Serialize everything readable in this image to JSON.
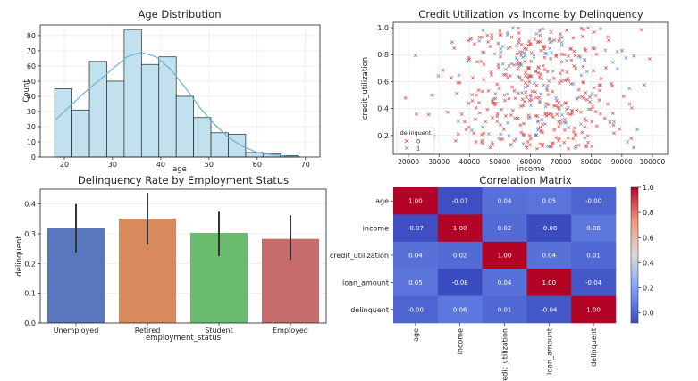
{
  "chart_data": [
    {
      "type": "bar",
      "subtype": "histogram",
      "title": "Age Distribution",
      "xlabel": "age",
      "ylabel": "Count",
      "xlim": [
        15,
        73
      ],
      "ylim": [
        0,
        87
      ],
      "xticks": [
        20,
        30,
        40,
        50,
        60,
        70
      ],
      "yticks": [
        0,
        10,
        20,
        30,
        40,
        50,
        60,
        70,
        80
      ],
      "bin_edges": [
        18,
        21.6,
        25.2,
        28.8,
        32.4,
        36,
        39.6,
        43.2,
        46.8,
        50.4,
        54,
        57.6,
        61.2,
        64.8,
        68.4
      ],
      "values": [
        45,
        31,
        63,
        50,
        84,
        61,
        66,
        40,
        26,
        16,
        15,
        3,
        2,
        1
      ],
      "kde": {
        "x": [
          18,
          21,
          24,
          27,
          30,
          33,
          36,
          39,
          42,
          45,
          48,
          51,
          54,
          57,
          60,
          63,
          66,
          69
        ],
        "y": [
          24,
          33,
          42,
          50,
          58,
          66,
          69,
          66,
          58,
          46,
          33,
          22,
          13,
          7,
          3,
          1.5,
          0.6,
          0.2
        ]
      },
      "colors": {
        "bar": "#c2e1ee",
        "edge": "#222222",
        "kde": "#6cb3d6"
      },
      "grid": true
    },
    {
      "type": "scatter",
      "title": "Credit Utilization vs Income by Delinquency",
      "xlabel": "income",
      "ylabel": "credit_utilization",
      "xlim": [
        15000,
        105000
      ],
      "ylim": [
        0.06,
        1.04
      ],
      "xticks": [
        20000,
        30000,
        40000,
        50000,
        60000,
        70000,
        80000,
        90000,
        100000
      ],
      "yticks": [
        0.2,
        0.4,
        0.6,
        0.8,
        1.0
      ],
      "ytick_labels": [
        "0.2",
        "0.4",
        "0.6",
        "0.8",
        "1.0"
      ],
      "legend": {
        "title": "delinquent",
        "placement": "lower-left",
        "entries": [
          "0",
          "1"
        ]
      },
      "series": [
        {
          "name": "0",
          "color": "#e04646",
          "marker": "x",
          "n_points": 360,
          "x_mean": 62000,
          "x_sd": 15000,
          "y_min": 0.1,
          "y_max": 1.0
        },
        {
          "name": "1",
          "color": "#5a8fd6",
          "marker": "x",
          "n_points": 110,
          "x_mean": 62000,
          "x_sd": 14000,
          "y_min": 0.1,
          "y_max": 1.0
        }
      ],
      "grid": true
    },
    {
      "type": "bar",
      "title": "Delinquency Rate by Employment Status",
      "xlabel": "employment_status",
      "ylabel": "delinquent",
      "categories": [
        "Unemployed",
        "Retired",
        "Student",
        "Employed"
      ],
      "values": [
        0.318,
        0.351,
        0.303,
        0.283
      ],
      "ci_low": [
        0.237,
        0.263,
        0.225,
        0.212
      ],
      "ci_high": [
        0.4,
        0.438,
        0.374,
        0.362
      ],
      "ylim": [
        0,
        0.45
      ],
      "yticks": [
        0.0,
        0.1,
        0.2,
        0.3,
        0.4
      ],
      "ytick_labels": [
        "0.0",
        "0.1",
        "0.2",
        "0.3",
        "0.4"
      ],
      "colors": [
        "#5877be",
        "#d98a5c",
        "#6abb6d",
        "#c76c6c"
      ],
      "grid": true
    },
    {
      "type": "heatmap",
      "title": "Correlation Matrix",
      "labels": [
        "age",
        "income",
        "credit_utilization",
        "loan_amount",
        "delinquent"
      ],
      "matrix": [
        [
          1.0,
          -0.07,
          0.04,
          0.05,
          -0.0
        ],
        [
          -0.07,
          1.0,
          0.02,
          -0.08,
          0.06
        ],
        [
          0.04,
          0.02,
          1.0,
          0.04,
          0.01
        ],
        [
          0.05,
          -0.08,
          0.04,
          1.0,
          -0.04
        ],
        [
          -0.0,
          0.06,
          0.01,
          -0.04,
          1.0
        ]
      ],
      "cell_labels": [
        [
          "1.00",
          "-0.07",
          "0.04",
          "0.05",
          "-0.00"
        ],
        [
          "-0.07",
          "1.00",
          "0.02",
          "-0.08",
          "0.06"
        ],
        [
          "0.04",
          "0.02",
          "1.00",
          "0.04",
          "0.01"
        ],
        [
          "0.05",
          "-0.08",
          "0.04",
          "1.00",
          "-0.04"
        ],
        [
          "-0.00",
          "0.06",
          "0.01",
          "-0.04",
          "1.00"
        ]
      ],
      "colorbar": {
        "min": -0.08,
        "max": 1.0,
        "ticks": [
          0.0,
          0.2,
          0.4,
          0.6,
          0.8,
          1.0
        ],
        "tick_labels": [
          "0.0",
          "0.2",
          "0.4",
          "0.6",
          "0.8",
          "1.0"
        ],
        "colormap": "coolwarm"
      }
    }
  ]
}
